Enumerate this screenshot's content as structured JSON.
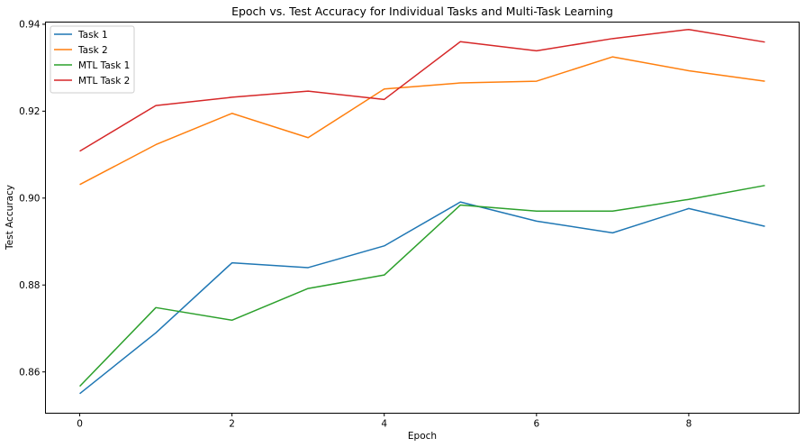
{
  "chart_data": {
    "type": "line",
    "title": "Epoch vs. Test Accuracy for Individual Tasks and Multi-Task Learning",
    "xlabel": "Epoch",
    "ylabel": "Test Accuracy",
    "x": [
      0,
      1,
      2,
      3,
      4,
      5,
      6,
      7,
      8,
      9
    ],
    "xlim": [
      -0.45,
      9.45
    ],
    "ylim": [
      0.8505,
      0.9405
    ],
    "xticks": [
      0,
      2,
      4,
      6,
      8
    ],
    "yticks": [
      0.86,
      0.88,
      0.9,
      0.92,
      0.94
    ],
    "ytick_labels": [
      "0.86",
      "0.88",
      "0.90",
      "0.92",
      "0.94"
    ],
    "grid": false,
    "legend_position": "top-left",
    "series": [
      {
        "name": "Task 1",
        "color": "#1f77b4",
        "values": [
          0.855,
          0.869,
          0.8851,
          0.884,
          0.889,
          0.8991,
          0.8947,
          0.892,
          0.8976,
          0.8935
        ]
      },
      {
        "name": "Task 2",
        "color": "#ff7f0e",
        "values": [
          0.9031,
          0.9123,
          0.9195,
          0.9139,
          0.9251,
          0.9265,
          0.9269,
          0.9325,
          0.9293,
          0.9269
        ]
      },
      {
        "name": "MTL Task 1",
        "color": "#2ca02c",
        "values": [
          0.8567,
          0.8748,
          0.8719,
          0.8792,
          0.8823,
          0.8984,
          0.897,
          0.897,
          0.8997,
          0.9029
        ]
      },
      {
        "name": "MTL Task 2",
        "color": "#d62728",
        "values": [
          0.9108,
          0.9213,
          0.9232,
          0.9246,
          0.9227,
          0.936,
          0.9339,
          0.9367,
          0.9388,
          0.9359
        ]
      }
    ]
  }
}
